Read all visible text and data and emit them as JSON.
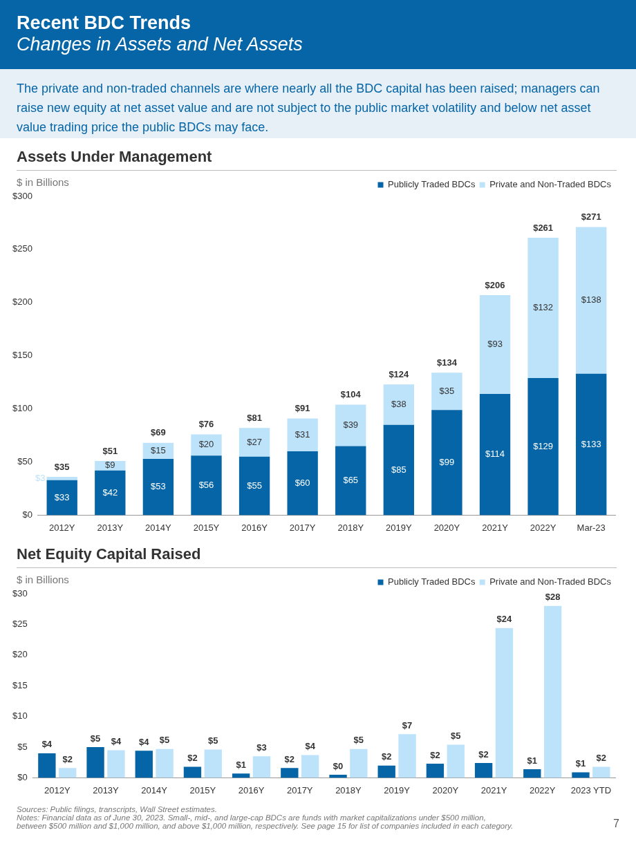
{
  "chart_data": [
    {
      "type": "other",
      "title": "Recent BDC Trends",
      "subtitle": "Changes in Assets and Net Assets",
      "annotations": [
        "The private and non-traded channels are where nearly all the BDC capital has been raised; managers can raise new equity at net asset value and are not subject to the public market volatility and below net asset value trading price the public BDCs may face."
      ]
    },
    {
      "type": "bar",
      "title": "Assets Under Management",
      "subtitle": "$ in Billions",
      "stacked": true,
      "legend": "top right",
      "categories": [
        "2012Y",
        "2013Y",
        "2014Y",
        "2015Y",
        "2016Y",
        "2017Y",
        "2018Y",
        "2019Y",
        "2020Y",
        "2021Y",
        "2022Y",
        "Mar-23"
      ],
      "series": [
        {
          "name": "Publicly Traded BDCs",
          "color": "#0565a6",
          "values": [
            33,
            42,
            53,
            56,
            55,
            60,
            65,
            85,
            99,
            114,
            129,
            133
          ],
          "value_labels": [
            "$33",
            "$42",
            "$53",
            "$56",
            "$55",
            "$60",
            "$65",
            "$85",
            "$99",
            "$114",
            "$129",
            "$133"
          ]
        },
        {
          "name": "Private and Non-Traded BDCs",
          "color": "#bde3fb",
          "values": [
            3,
            9,
            15,
            20,
            27,
            31,
            39,
            38,
            35,
            93,
            132,
            138
          ],
          "value_labels": [
            "$3",
            "$9",
            "$15",
            "$20",
            "$27",
            "$31",
            "$39",
            "$38",
            "$35",
            "$93",
            "$132",
            "$138"
          ]
        }
      ],
      "totals": [
        "$35",
        "$51",
        "$69",
        "$76",
        "$81",
        "$91",
        "$104",
        "$124",
        "$134",
        "$206",
        "$261",
        "$271"
      ],
      "ylim": [
        0,
        300
      ],
      "yticks": [
        {
          "value": 0,
          "label": "$0"
        },
        {
          "value": 50,
          "label": "$50"
        },
        {
          "value": 100,
          "label": "$100"
        },
        {
          "value": 150,
          "label": "$150"
        },
        {
          "value": 200,
          "label": "$200"
        },
        {
          "value": 250,
          "label": "$250"
        },
        {
          "value": 300,
          "label": "$300"
        }
      ]
    },
    {
      "type": "bar",
      "title": "Net Equity Capital Raised",
      "subtitle": "$ in Billions",
      "legend": "top right",
      "categories": [
        "2012Y",
        "2013Y",
        "2014Y",
        "2015Y",
        "2016Y",
        "2017Y",
        "2018Y",
        "2019Y",
        "2020Y",
        "2021Y",
        "2022Y",
        "2023 YTD"
      ],
      "series": [
        {
          "name": "Publicly Traded BDCs",
          "color": "#0565a6",
          "values": [
            4.0,
            5.0,
            4.4,
            1.8,
            0.7,
            1.6,
            0.5,
            2.0,
            2.3,
            2.4,
            1.4,
            0.9
          ],
          "value_labels": [
            "$4",
            "$5",
            "$4",
            "$2",
            "$1",
            "$2",
            "$0",
            "$2",
            "$2",
            "$2",
            "$1",
            "$1"
          ]
        },
        {
          "name": "Private and Non-Traded BDCs",
          "color": "#bde3fb",
          "values": [
            1.6,
            4.5,
            4.7,
            4.6,
            3.5,
            3.7,
            4.7,
            7.1,
            5.4,
            24.4,
            28.0,
            1.8
          ],
          "value_labels": [
            "$2",
            "$4",
            "$5",
            "$5",
            "$3",
            "$4",
            "$5",
            "$7",
            "$5",
            "$24",
            "$28",
            "$2"
          ]
        }
      ],
      "ylim": [
        0,
        30
      ],
      "yticks": [
        {
          "value": 0,
          "label": "$0"
        },
        {
          "value": 5,
          "label": "$5"
        },
        {
          "value": 10,
          "label": "$10"
        },
        {
          "value": 15,
          "label": "$15"
        },
        {
          "value": 20,
          "label": "$20"
        },
        {
          "value": 25,
          "label": "$25"
        },
        {
          "value": 30,
          "label": "$30"
        }
      ],
      "annotations": [
        "Sources: Public filings, transcripts, Wall Street estimates.",
        "Notes: Financial data as of June 30, 2023. Small-, mid-, and large-cap BDCs are funds with market capitalizations under $500 million, between $500 million and $1,000 million, and above $1,000 million, respectively. See page 15 for list of companies included in each category.",
        "7"
      ]
    }
  ]
}
